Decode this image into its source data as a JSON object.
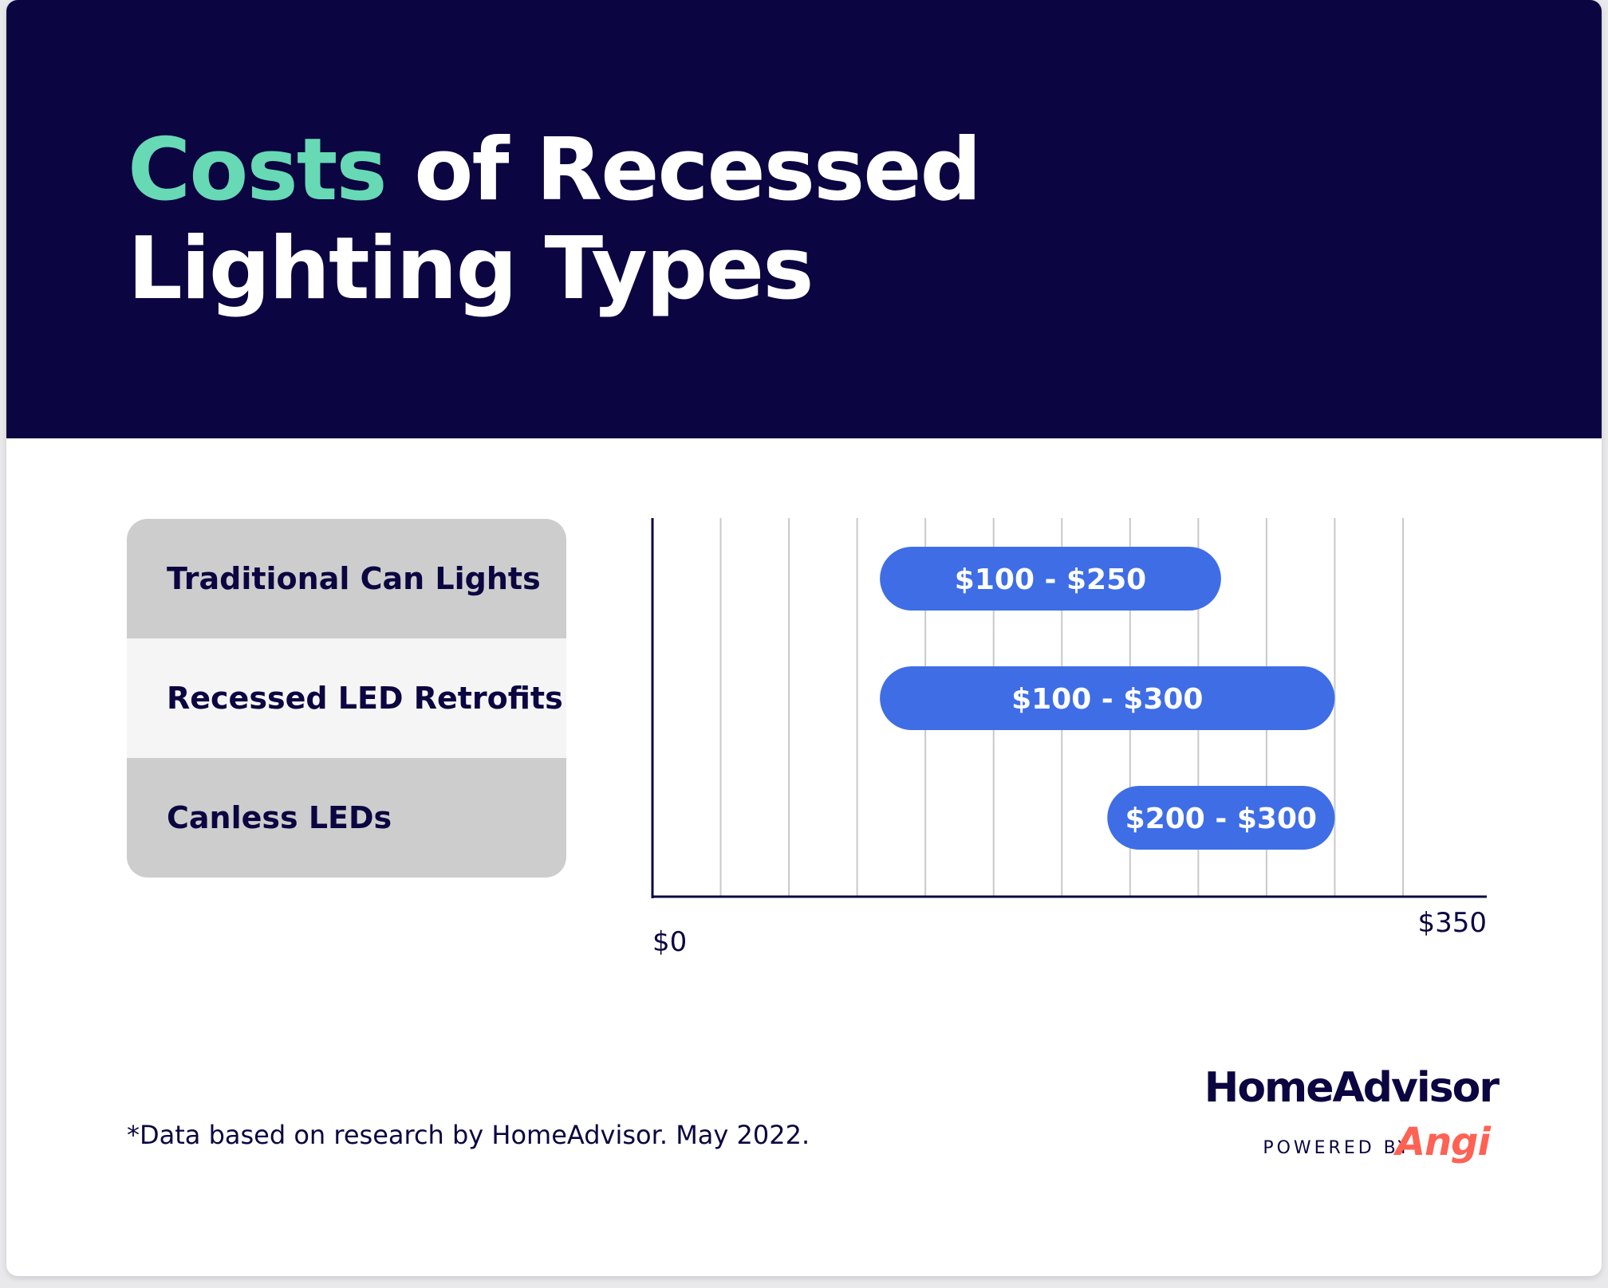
{
  "header": {
    "title_accent": "Costs",
    "title_line1_rest": " of Recessed",
    "title_line2": "Lighting Types",
    "accent_color": "#67d9b5",
    "background_color": "#0b0541"
  },
  "chart_data": {
    "type": "bar",
    "orientation": "horizontal",
    "chart_style": "floating range bars",
    "categories": [
      "Traditional Can Lights",
      "Recessed LED Retrofits",
      "Canless LEDs"
    ],
    "ranges": [
      [
        100,
        250
      ],
      [
        100,
        300
      ],
      [
        200,
        300
      ]
    ],
    "data_labels": [
      "$100 - $250",
      "$100 - $300",
      "$200 - $300"
    ],
    "xlim": [
      0,
      350
    ],
    "x_tick_labels": [
      "$0",
      "$350"
    ],
    "vertical_gridlines_every": 30,
    "grid": true,
    "bar_color": "#3e6de6",
    "title": "",
    "xlabel": "",
    "ylabel": ""
  },
  "footnote": "*Data based on research by HomeAdvisor. May 2022.",
  "brand": {
    "name": "HomeAdvisor",
    "powered_by": "POWERED BY",
    "partner": "Angi",
    "partner_color": "#ff6153"
  }
}
